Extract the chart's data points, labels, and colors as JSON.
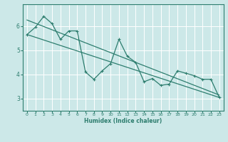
{
  "xlabel": "Humidex (Indice chaleur)",
  "bg_color": "#cce8e8",
  "grid_color": "#ffffff",
  "line_color": "#2d7d6e",
  "xlim": [
    -0.5,
    23.5
  ],
  "ylim": [
    2.5,
    6.9
  ],
  "yticks": [
    3,
    4,
    5,
    6
  ],
  "xticks": [
    0,
    1,
    2,
    3,
    4,
    5,
    6,
    7,
    8,
    9,
    10,
    11,
    12,
    13,
    14,
    15,
    16,
    17,
    18,
    19,
    20,
    21,
    22,
    23
  ],
  "scatter_x": [
    0,
    1,
    2,
    3,
    4,
    5,
    6,
    7,
    8,
    9,
    10,
    11,
    12,
    13,
    14,
    15,
    16,
    17,
    18,
    19,
    20,
    21,
    22,
    23
  ],
  "scatter_y": [
    5.65,
    5.95,
    6.4,
    6.1,
    5.45,
    5.8,
    5.8,
    4.1,
    3.8,
    4.15,
    4.45,
    5.45,
    4.75,
    4.5,
    3.7,
    3.83,
    3.55,
    3.6,
    4.15,
    4.05,
    3.95,
    3.8,
    3.8,
    3.05
  ],
  "trend1_x": [
    0,
    23
  ],
  "trend1_y": [
    6.25,
    3.15
  ],
  "trend2_x": [
    0,
    23
  ],
  "trend2_y": [
    5.65,
    3.05
  ]
}
